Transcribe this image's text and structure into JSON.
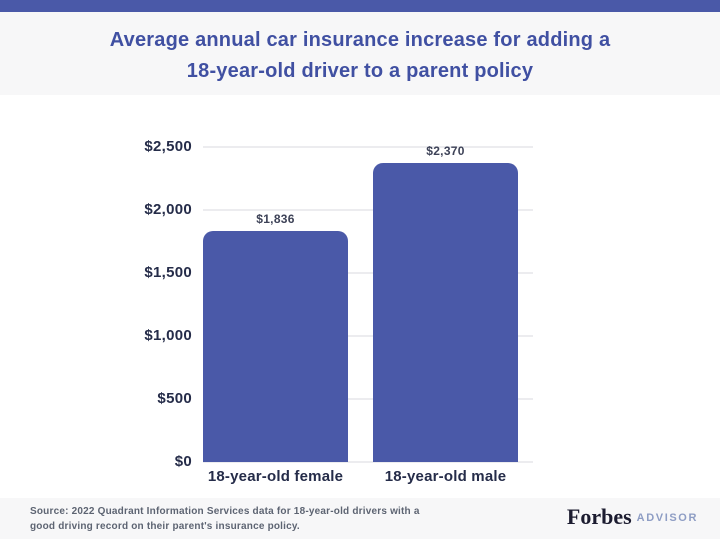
{
  "header": {
    "title_line1": "Average annual car insurance increase for adding a",
    "title_line2": "18-year-old driver to a parent policy"
  },
  "chart_data": {
    "type": "bar",
    "title": "Average annual car insurance increase for adding a 18-year-old driver to a parent policy",
    "categories": [
      "18-year-old female",
      "18-year-old male"
    ],
    "values": [
      1836,
      2370
    ],
    "value_labels": [
      "$1,836",
      "$2,370"
    ],
    "xlabel": "",
    "ylabel": "",
    "ylim": [
      0,
      2500
    ],
    "ytick_interval": 500,
    "ytick_labels": [
      "$0",
      "$500",
      "$1,000",
      "$1,500",
      "$2,000",
      "$2,500"
    ],
    "grid": true,
    "legend": false,
    "bar_color": "#4A59A8"
  },
  "footer": {
    "source_line1": "Source: 2022 Quadrant Information Services data for 18-year-old drivers with a",
    "source_line2": "good driving record on their parent's insurance policy.",
    "brand_name": "Forbes",
    "brand_suffix": "ADVISOR"
  },
  "colors": {
    "accent_blue": "#4A59A8",
    "bar_fill": "#4A59A8",
    "title_text": "#4050A2",
    "band_background": "#F7F7F8",
    "chart_background": "#FFFFFF",
    "axis_text": "#252C49",
    "value_label_text": "#3D4257",
    "gridline": "#ECECEF",
    "source_text": "#5D6472",
    "forbes_text": "#1C1C30",
    "advisor_text": "#8E9DC4"
  }
}
